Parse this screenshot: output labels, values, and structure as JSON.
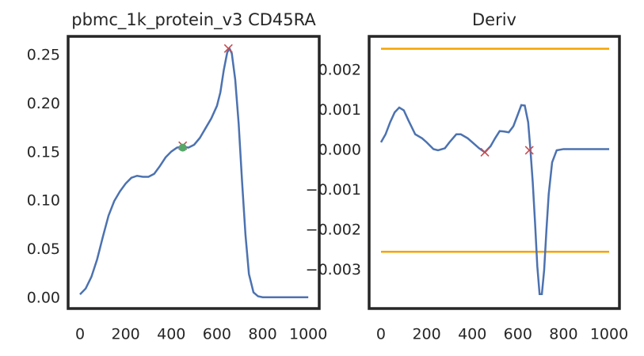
{
  "chart_data": [
    {
      "type": "line",
      "title": "pbmc_1k_protein_v3 CD45RA",
      "x": [
        0,
        25,
        50,
        75,
        100,
        125,
        150,
        175,
        200,
        225,
        250,
        275,
        300,
        325,
        350,
        375,
        400,
        425,
        450,
        475,
        500,
        525,
        550,
        575,
        600,
        615,
        630,
        645,
        655,
        665,
        680,
        695,
        710,
        725,
        740,
        760,
        780,
        800,
        850,
        900,
        1000
      ],
      "series": [
        {
          "color": "#4c72b0",
          "values": [
            0.004,
            0.01,
            0.022,
            0.04,
            0.063,
            0.085,
            0.1,
            0.11,
            0.118,
            0.124,
            0.126,
            0.125,
            0.125,
            0.128,
            0.136,
            0.145,
            0.151,
            0.155,
            0.156,
            0.155,
            0.158,
            0.165,
            0.175,
            0.185,
            0.198,
            0.212,
            0.235,
            0.253,
            0.257,
            0.252,
            0.225,
            0.18,
            0.12,
            0.065,
            0.025,
            0.006,
            0.002,
            0.001,
            0.001,
            0.001,
            0.001
          ]
        }
      ],
      "markers": [
        {
          "x": [
            450,
            650
          ],
          "y": [
            0.157,
            0.257
          ],
          "color": "#c44e52",
          "shape": "x"
        },
        {
          "x": [
            450
          ],
          "y": [
            0.155
          ],
          "color": "#55a868",
          "shape": "o"
        }
      ],
      "xlim": [
        -52,
        1048
      ],
      "xticks": [
        0,
        200,
        400,
        600,
        800,
        1000
      ],
      "ylim": [
        -0.0106,
        0.2695
      ],
      "yticks": [
        {
          "value": 0,
          "label": "0.00"
        },
        0.05,
        {
          "value": 0.1,
          "label": "0.10"
        },
        0.15,
        {
          "value": 0.2,
          "label": "0.20"
        },
        0.25
      ]
    },
    {
      "type": "line",
      "title": "Deriv",
      "x": [
        0,
        20,
        40,
        60,
        80,
        100,
        120,
        150,
        180,
        200,
        230,
        250,
        280,
        300,
        330,
        350,
        380,
        400,
        430,
        455,
        480,
        500,
        520,
        540,
        560,
        580,
        600,
        615,
        630,
        645,
        655,
        665,
        675,
        685,
        695,
        705,
        715,
        725,
        735,
        750,
        770,
        800,
        850,
        1000
      ],
      "series": [
        {
          "color": "#4c72b0",
          "values": [
            0.0002,
            0.0004,
            0.0007,
            0.00095,
            0.00107,
            0.001,
            0.00075,
            0.0004,
            0.0003,
            0.0002,
            3e-05,
            0.0,
            5e-05,
            0.0002,
            0.0004,
            0.0004,
            0.0003,
            0.0002,
            5e-05,
            -5e-05,
            0.0001,
            0.0003,
            0.00048,
            0.00047,
            0.00045,
            0.0006,
            0.0009,
            0.00113,
            0.00112,
            0.0007,
            0.0,
            -0.0008,
            -0.0018,
            -0.0029,
            -0.0036,
            -0.0036,
            -0.003,
            -0.002,
            -0.0011,
            -0.0003,
            0.0,
            3e-05,
            3e-05,
            3e-05
          ]
        }
      ],
      "markers": [
        {
          "x": [
            455,
            650
          ],
          "y": [
            -5e-05,
            0.0
          ],
          "color": "#c44e52",
          "shape": "x"
        }
      ],
      "hlines": [
        0.00254,
        -0.00254
      ],
      "hline_color": "#f5a300",
      "xlim": [
        -52,
        1045
      ],
      "xticks": [
        0,
        200,
        400,
        600,
        800,
        1000
      ],
      "ylim": [
        -0.00396,
        0.00285
      ],
      "yticks": [
        {
          "value": -0.003,
          "label": "−0.003"
        },
        {
          "value": -0.002,
          "label": "−0.002"
        },
        {
          "value": -0.001,
          "label": "−0.001"
        },
        {
          "value": 0,
          "label": "0.000"
        },
        0.001,
        0.002
      ]
    }
  ]
}
